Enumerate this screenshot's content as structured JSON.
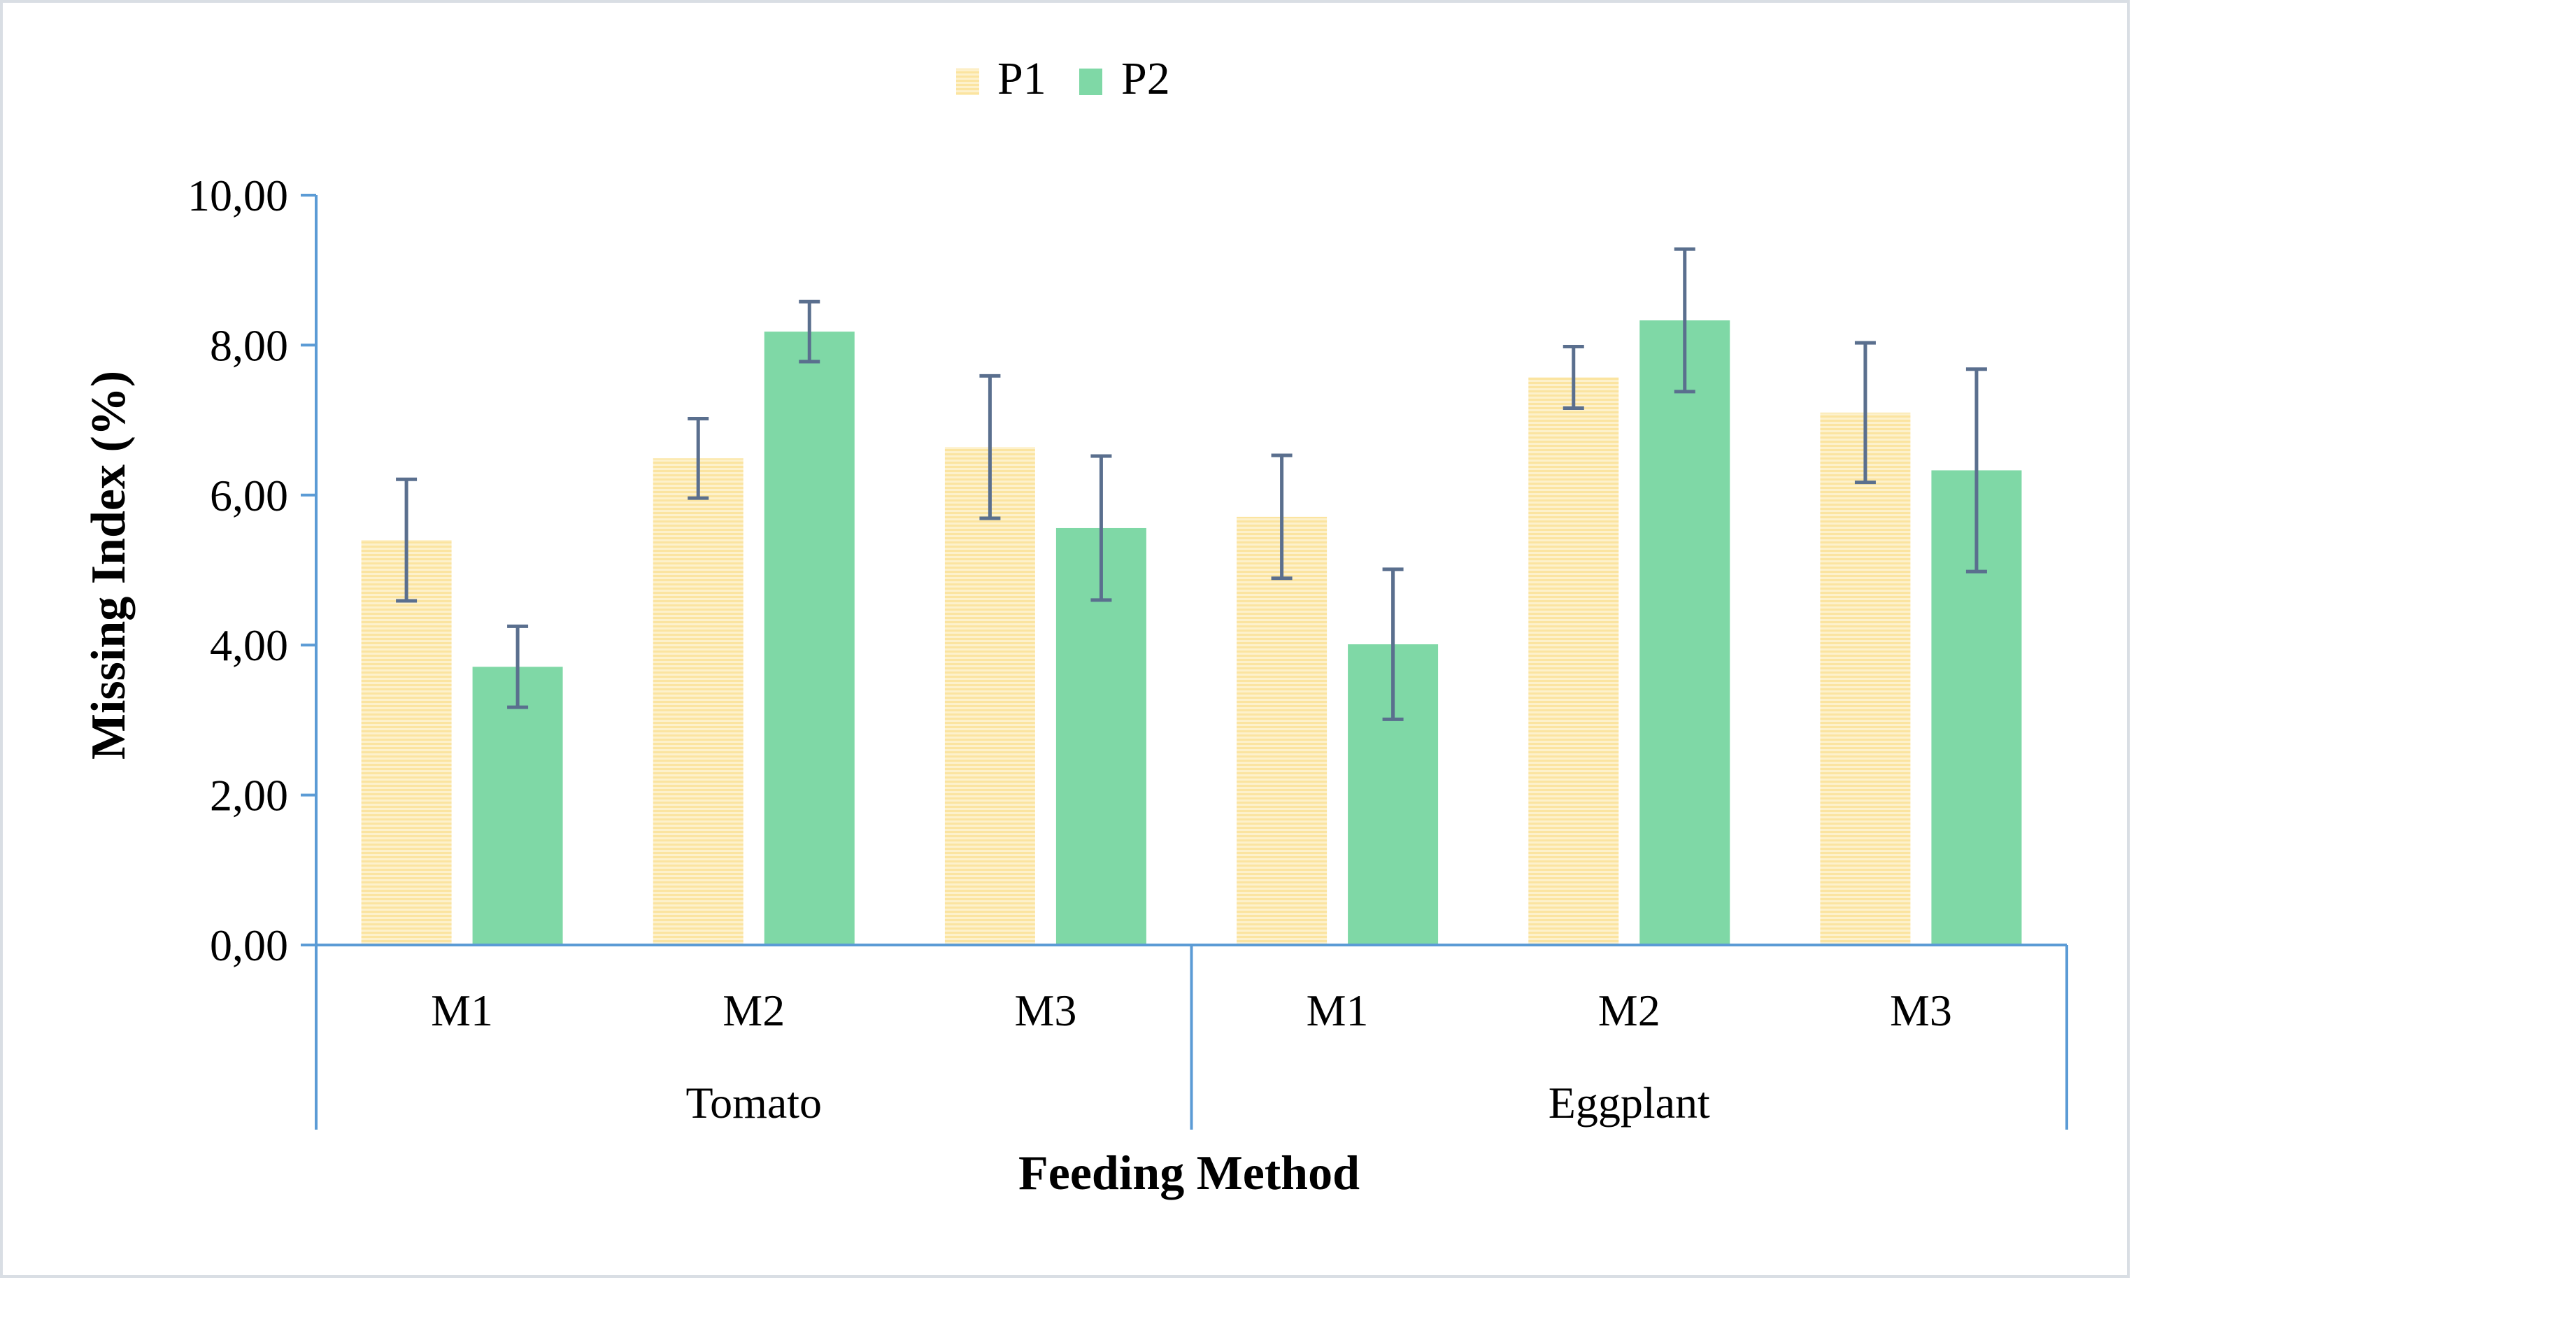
{
  "chart_data": {
    "type": "bar",
    "xlabel": "Feeding Method",
    "ylabel": "Missing Index (%)",
    "ylim": [
      0,
      10
    ],
    "yticks": [
      "0,00",
      "2,00",
      "4,00",
      "6,00",
      "8,00",
      "10,00"
    ],
    "groups": [
      {
        "name": "Tomato",
        "categories": [
          "M1",
          "M2",
          "M3"
        ]
      },
      {
        "name": "Eggplant",
        "categories": [
          "M1",
          "M2",
          "M3"
        ]
      }
    ],
    "categories": [
      "M1",
      "M2",
      "M3",
      "M1",
      "M2",
      "M3"
    ],
    "series": [
      {
        "name": "P1",
        "color": "#fbe6a8",
        "values": [
          5.4,
          6.49,
          6.64,
          5.71,
          7.57,
          7.1
        ],
        "error": [
          0.81,
          0.53,
          0.95,
          0.82,
          0.41,
          0.93
        ]
      },
      {
        "name": "P2",
        "color": "#7fd8a6",
        "values": [
          3.71,
          8.18,
          5.56,
          4.01,
          8.33,
          6.33
        ],
        "error": [
          0.54,
          0.4,
          0.96,
          1.0,
          0.95,
          1.35
        ]
      }
    ],
    "legend": "top",
    "grid": false
  },
  "colors": {
    "axis": "#5b9bd5",
    "error_bar": "#5a6f8e"
  }
}
